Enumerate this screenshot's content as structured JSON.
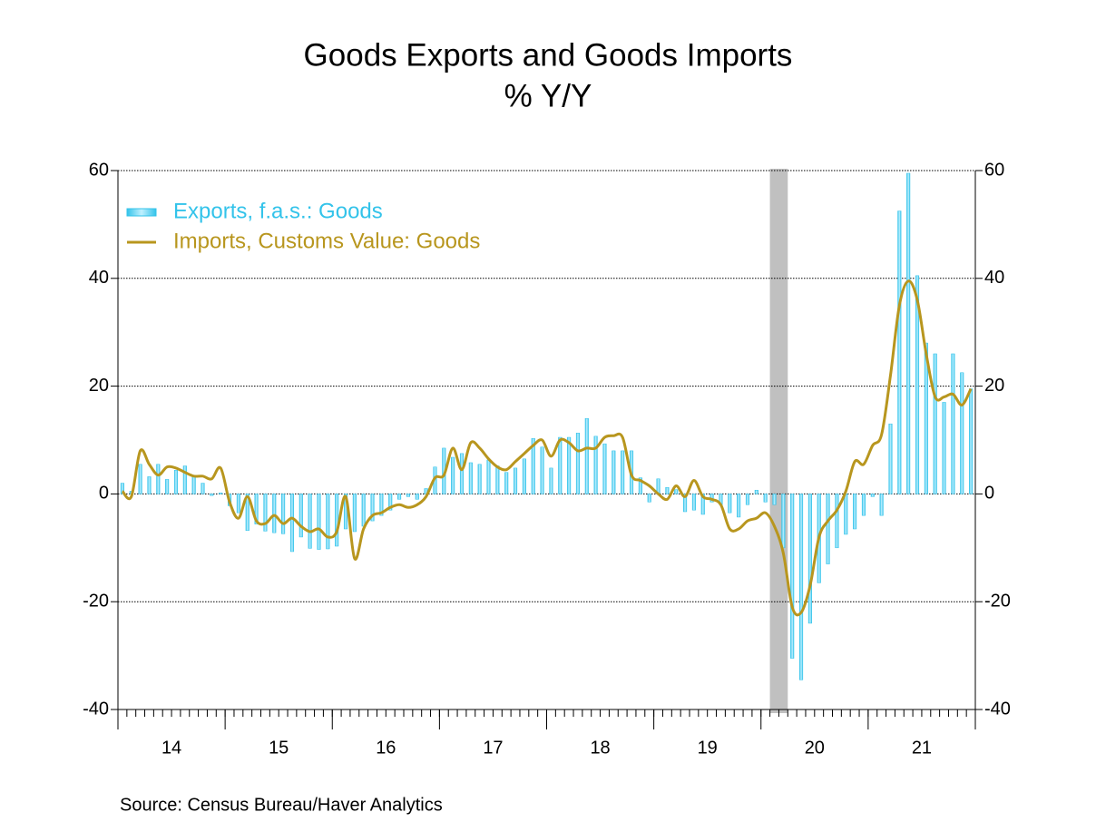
{
  "chart_data": {
    "type": "combo",
    "title": "Goods Exports and Goods Imports",
    "subtitle": "% Y/Y",
    "source": "Source:  Census Bureau/Haver Analytics",
    "categories": [
      null,
      null,
      null,
      null,
      null,
      null,
      "14",
      null,
      null,
      null,
      null,
      null,
      null,
      null,
      null,
      null,
      null,
      null,
      "15",
      null,
      null,
      null,
      null,
      null,
      null,
      null,
      null,
      null,
      null,
      null,
      "16",
      null,
      null,
      null,
      null,
      null,
      null,
      null,
      null,
      null,
      null,
      null,
      "17",
      null,
      null,
      null,
      null,
      null,
      null,
      null,
      null,
      null,
      null,
      null,
      "18",
      null,
      null,
      null,
      null,
      null,
      null,
      null,
      null,
      null,
      null,
      null,
      "19",
      null,
      null,
      null,
      null,
      null,
      null,
      null,
      null,
      null,
      null,
      null,
      "20",
      null,
      null,
      null,
      null,
      null,
      null,
      null,
      null,
      null,
      null,
      null,
      "21",
      null,
      null,
      null,
      null,
      null
    ],
    "series": [
      {
        "name": "Exports, f.a.s.: Goods",
        "type": "bar",
        "color": "#33c3ea",
        "values": [
          2,
          0.5,
          5.5,
          3.2,
          5.5,
          2.7,
          4.4,
          5.2,
          3.3,
          2,
          -0.3,
          0.2,
          -2.2,
          -3.5,
          -6.8,
          -5.6,
          -6.9,
          -7.2,
          -7.4,
          -10.7,
          -8,
          -10.1,
          -10.3,
          -10.2,
          -9.7,
          -6.5,
          -7,
          -6,
          -5,
          -4,
          -3,
          -1,
          -0.5,
          -1,
          1,
          5,
          8.5,
          6.8,
          7.5,
          5.8,
          5.5,
          6.3,
          5.2,
          4,
          4.8,
          6.5,
          10.3,
          8.7,
          4.8,
          10.5,
          10.5,
          11.3,
          14,
          10.7,
          9.3,
          8,
          8,
          8,
          3,
          -1.5,
          2.8,
          1.2,
          0.8,
          -3.3,
          -3,
          -3.8,
          -1.5,
          -2,
          -3.5,
          -4.3,
          -2,
          0.7,
          -1.5,
          -2,
          -10,
          -30.5,
          -34.5,
          -24,
          -16.5,
          -13,
          -10,
          -7.5,
          -6.5,
          -4,
          -0.5,
          -4,
          13,
          52.5,
          59.5,
          40.5,
          28,
          26,
          17,
          26,
          22.5,
          19.5
        ]
      },
      {
        "name": "Imports, Customs Value: Goods",
        "type": "line",
        "color": "#b8961e",
        "values": [
          0.5,
          -0.5,
          8,
          5.5,
          3.5,
          5,
          4.8,
          4,
          3.3,
          3.3,
          2.8,
          4.8,
          -1.5,
          -4.5,
          -0.5,
          -5,
          -5.5,
          -4,
          -5.5,
          -4.5,
          -6,
          -7,
          -6.5,
          -8,
          -7,
          -0.5,
          -12,
          -6.5,
          -4,
          -3.5,
          -2.5,
          -2,
          -2.5,
          -2,
          -0.5,
          3,
          3.5,
          8.5,
          4.5,
          9.5,
          8.5,
          6.5,
          5,
          4.5,
          6,
          7.5,
          9,
          10,
          7,
          10,
          9.5,
          8,
          8.5,
          8.5,
          10.5,
          10.8,
          10.5,
          3.5,
          2.5,
          1.5,
          0,
          -1,
          1.5,
          -0.5,
          2.5,
          -0.5,
          -1,
          -2,
          -6.5,
          -6.5,
          -5,
          -4.5,
          -3.5,
          -6,
          -11,
          -21,
          -22,
          -17,
          -8,
          -5,
          -3,
          0.5,
          6,
          5.5,
          9,
          11,
          22,
          35,
          39.5,
          36,
          26,
          18,
          18,
          18.5,
          16.5,
          19.5
        ]
      }
    ],
    "shading": [
      {
        "from": 73,
        "to": 75,
        "color": "#c0c0c0"
      }
    ],
    "ylim": [
      -40,
      60
    ],
    "yticks": [
      -40,
      -20,
      0,
      20,
      40,
      60
    ],
    "y2lim": [
      -40,
      60
    ],
    "y2ticks": [
      -40,
      -20,
      0,
      20,
      40,
      60
    ],
    "grid": true,
    "legend": "top-left"
  }
}
